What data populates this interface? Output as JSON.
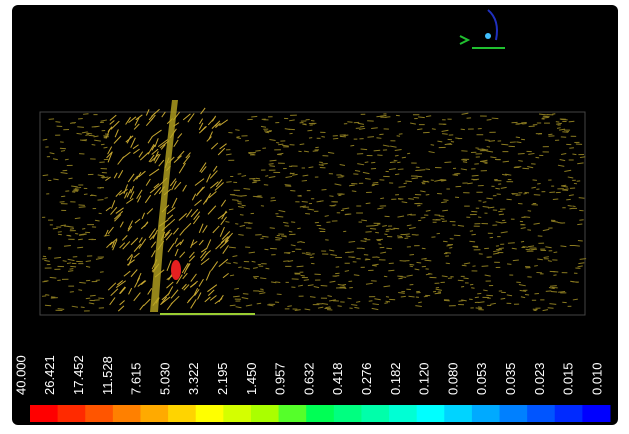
{
  "colorbar": {
    "labels": [
      "40.000",
      "26.421",
      "17.452",
      "11.528",
      "7.615",
      "5.030",
      "3.322",
      "2.195",
      "1.450",
      "0.957",
      "0.632",
      "0.418",
      "0.276",
      "0.182",
      "0.120",
      "0.080",
      "0.053",
      "0.035",
      "0.023",
      "0.015",
      "0.010"
    ],
    "colors": [
      "#ff0000",
      "#ff2a00",
      "#ff5500",
      "#ff8000",
      "#ffaa00",
      "#ffd400",
      "#ffff00",
      "#d4ff00",
      "#aaff00",
      "#55ff2a",
      "#00ff55",
      "#00ff80",
      "#00ffaa",
      "#00ffd4",
      "#00ffff",
      "#00d4ff",
      "#00aaff",
      "#0080ff",
      "#0055ff",
      "#002aff",
      "#0000ff"
    ]
  }
}
